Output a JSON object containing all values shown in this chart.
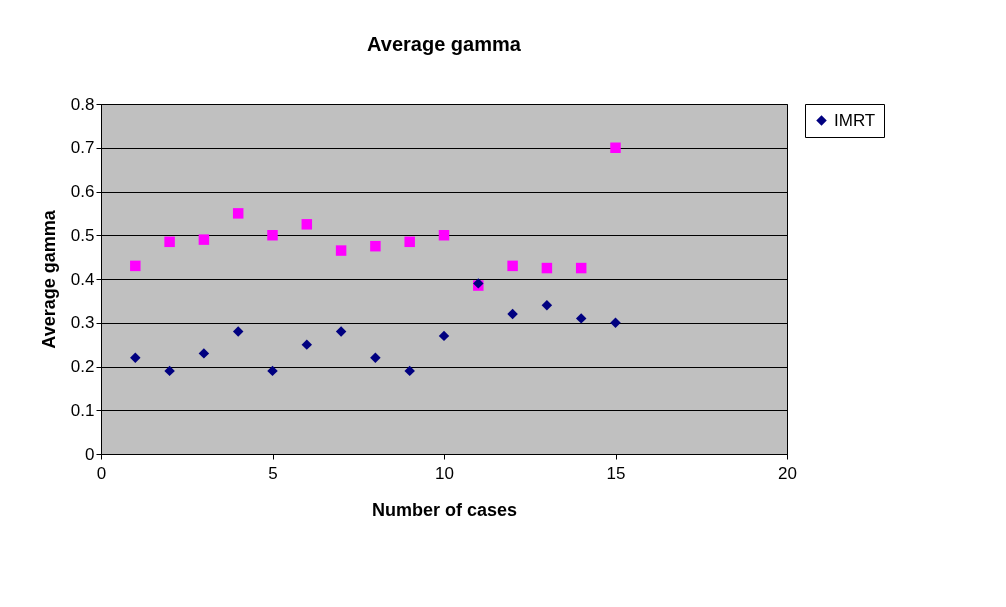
{
  "chart_data": {
    "type": "scatter",
    "title": "Average gamma",
    "xlabel": "Number of cases",
    "ylabel": "Average gamma",
    "x": [
      1,
      2,
      3,
      4,
      5,
      6,
      7,
      8,
      9,
      10,
      11,
      12,
      13,
      14,
      15
    ],
    "series": [
      {
        "name": "IMRT",
        "color": "#000080",
        "marker": "diamond",
        "values": [
          0.22,
          0.19,
          0.23,
          0.28,
          0.19,
          0.25,
          0.28,
          0.22,
          0.19,
          0.27,
          0.39,
          0.32,
          0.34,
          0.31,
          0.3
        ]
      },
      {
        "color": "#ff00ff",
        "marker": "square",
        "values": [
          0.43,
          0.485,
          0.49,
          0.55,
          0.5,
          0.525,
          0.465,
          0.475,
          0.485,
          0.5,
          0.385,
          0.43,
          0.425,
          0.425,
          0.7
        ]
      }
    ],
    "xlim": [
      0,
      20
    ],
    "xticks": [
      0,
      5,
      10,
      15,
      20
    ],
    "ylim": [
      0,
      0.8
    ],
    "yticks": [
      0,
      0.1,
      0.2,
      0.3,
      0.4,
      0.5,
      0.6,
      0.7,
      0.8
    ],
    "grid": "y",
    "legend": "right"
  }
}
